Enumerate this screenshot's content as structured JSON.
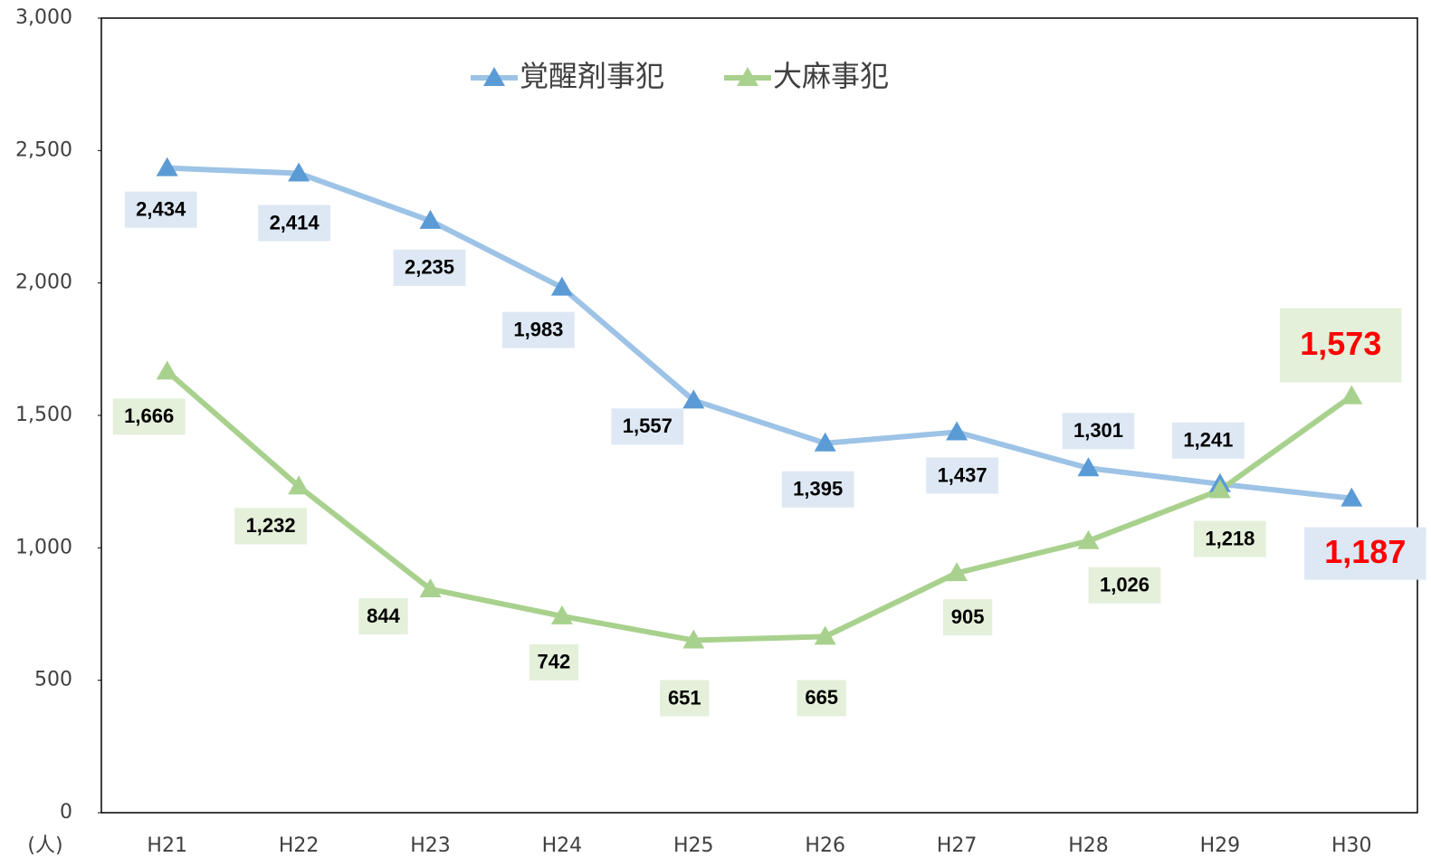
{
  "chart_data": {
    "type": "line",
    "unit_label": "(人)",
    "categories": [
      "H21",
      "H22",
      "H23",
      "H24",
      "H25",
      "H26",
      "H27",
      "H28",
      "H29",
      "H30"
    ],
    "series": [
      {
        "name": "覚醒剤事犯",
        "color": "#9dc3e6",
        "marker_color": "#5b9bd5",
        "label_background": "#dde8f4",
        "values": [
          2434,
          2414,
          2235,
          1983,
          1557,
          1395,
          1437,
          1301,
          1241,
          1187
        ],
        "value_labels": [
          "2,434",
          "2,414",
          "2,235",
          "1,983",
          "1,557",
          "1,395",
          "1,437",
          "1,301",
          "1,241",
          "1,187"
        ]
      },
      {
        "name": "大麻事犯",
        "color": "#a9d18e",
        "marker_color": "#a9d18e",
        "label_background": "#e4f0da",
        "values": [
          1666,
          1232,
          844,
          742,
          651,
          665,
          905,
          1026,
          1218,
          1573
        ],
        "value_labels": [
          "1,666",
          "1,232",
          "844",
          "742",
          "651",
          "665",
          "905",
          "1,026",
          "1,218",
          "1,573"
        ]
      }
    ],
    "highlight_color": "#ff0000",
    "ylim": [
      0,
      3000
    ],
    "yticks": [
      0,
      500,
      {
        "value": 1000,
        "label": "1,000"
      },
      {
        "value": 1500,
        "label": "1,500"
      },
      {
        "value": 2000,
        "label": "2,000"
      },
      {
        "value": 2500,
        "label": "2,500"
      },
      {
        "value": 3000,
        "label": "3,000"
      }
    ],
    "legend": "top"
  }
}
